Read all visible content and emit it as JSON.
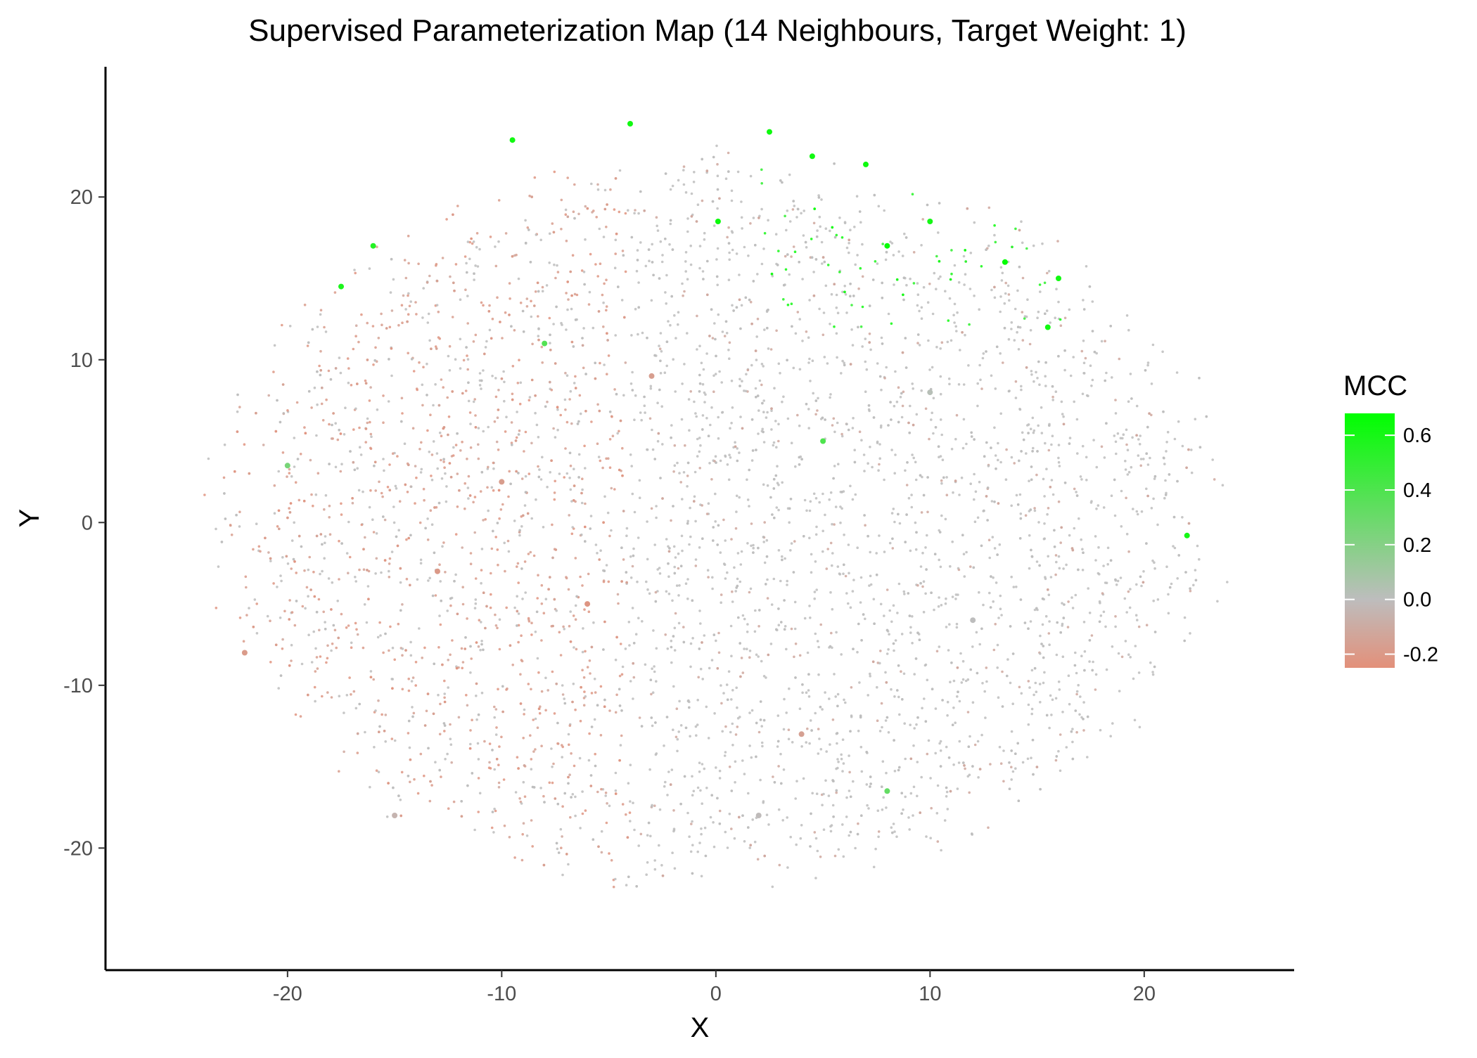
{
  "chart_data": {
    "type": "scatter",
    "title": "Supervised Parameterization Map (14 Neighbours, Target Weight: 1)",
    "xlabel": "X",
    "ylabel": "Y",
    "xlim": [
      -28.5,
      27
    ],
    "ylim": [
      -27.5,
      28
    ],
    "x_ticks": [
      -20,
      -10,
      0,
      10,
      20
    ],
    "x_tick_labels": [
      "-20",
      "-10",
      "0",
      "10",
      "20"
    ],
    "y_ticks": [
      -20,
      -10,
      0,
      10,
      20
    ],
    "y_tick_labels": [
      "-20",
      "-10",
      "0",
      "10",
      "20"
    ],
    "grid": false,
    "point_cloud": {
      "shape": "ellipse",
      "center": [
        0,
        0
      ],
      "x_extent": [
        -26,
        24.5
      ],
      "y_extent": [
        -25,
        25.5
      ],
      "dominant_value": 0.0,
      "negative_region": "left / center-left",
      "positive_region": "top-right edge"
    },
    "series": [
      {
        "values": [
          {
            "x": 0.1,
            "y": 18.5,
            "mcc": 0.64
          },
          {
            "x": 8.0,
            "y": 17.0,
            "mcc": 0.66
          },
          {
            "x": 13.5,
            "y": 16.0,
            "mcc": 0.67
          },
          {
            "x": 15.5,
            "y": 12.0,
            "mcc": 0.62
          },
          {
            "x": 10.0,
            "y": 18.5,
            "mcc": 0.6
          },
          {
            "x": 16.0,
            "y": 15.0,
            "mcc": 0.62
          },
          {
            "x": 22.0,
            "y": -0.8,
            "mcc": 0.6
          },
          {
            "x": -17.5,
            "y": 14.5,
            "mcc": 0.58
          },
          {
            "x": -16.0,
            "y": 17.0,
            "mcc": 0.55
          },
          {
            "x": -9.5,
            "y": 23.5,
            "mcc": 0.62
          },
          {
            "x": -4.0,
            "y": 24.5,
            "mcc": 0.62
          },
          {
            "x": 2.5,
            "y": 24.0,
            "mcc": 0.63
          },
          {
            "x": 4.5,
            "y": 22.5,
            "mcc": 0.62
          },
          {
            "x": 7.0,
            "y": 22.0,
            "mcc": 0.63
          },
          {
            "x": 5.0,
            "y": 5.0,
            "mcc": 0.4
          },
          {
            "x": -8.0,
            "y": 11.0,
            "mcc": 0.38
          },
          {
            "x": 8.0,
            "y": -16.5,
            "mcc": 0.32
          },
          {
            "x": -20.0,
            "y": 3.5,
            "mcc": 0.25
          },
          {
            "x": -10.0,
            "y": 2.5,
            "mcc": -0.18
          },
          {
            "x": -13.0,
            "y": -3.0,
            "mcc": -0.2
          },
          {
            "x": -6.0,
            "y": -5.0,
            "mcc": -0.22
          },
          {
            "x": -22.0,
            "y": -8.0,
            "mcc": -0.19
          },
          {
            "x": -3.0,
            "y": 9.0,
            "mcc": -0.17
          },
          {
            "x": 4.0,
            "y": -13.0,
            "mcc": -0.16
          },
          {
            "x": 12.0,
            "y": -6.0,
            "mcc": 0.0
          },
          {
            "x": 10.0,
            "y": 8.0,
            "mcc": 0.02
          },
          {
            "x": 2.0,
            "y": -18.0,
            "mcc": -0.01
          },
          {
            "x": -15.0,
            "y": -18.0,
            "mcc": -0.05
          }
        ]
      }
    ],
    "colorbar": {
      "title": "MCC",
      "range": [
        -0.25,
        0.68
      ],
      "ticks": [
        -0.2,
        0.0,
        0.2,
        0.4,
        0.6
      ],
      "tick_labels": [
        "-0.2",
        "0.0",
        "0.2",
        "0.4",
        "0.6"
      ],
      "colors": {
        "low": "#e3907a",
        "mid": "#bdbdbd",
        "high": "#00ff00"
      }
    }
  }
}
